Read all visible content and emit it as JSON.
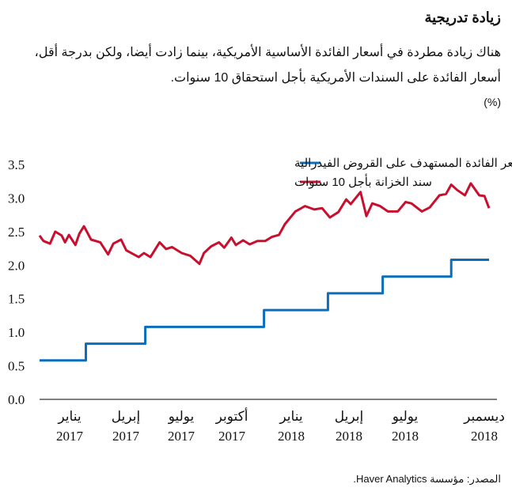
{
  "title": "زيادة تدريجية",
  "subtitle_lines": [
    "هناك زيادة مطردة في أسعار الفائدة الأساسية الأمريكية، بينما زادت أيضا، ولكن بدرجة أقل،",
    "أسعار الفائدة على السندات الأمريكية بأجل استحقاق 10 سنوات."
  ],
  "unit": "(%)",
  "source": "المصدر: مؤسسة Haver Analytics.",
  "chart_data": {
    "type": "line",
    "title": "زيادة تدريجية",
    "ylabel": "(%)",
    "ylim": [
      0,
      3.5
    ],
    "yticks": [
      "0.0",
      "0.5",
      "1.0",
      "1.5",
      "2.0",
      "2.5",
      "3.0",
      "3.5"
    ],
    "xlim": [
      "2017-01-03",
      "2018-11-23"
    ],
    "xticks": [
      {
        "month": "يناير",
        "year": "2017"
      },
      {
        "month": "إبريل",
        "year": "2017"
      },
      {
        "month": "يوليو",
        "year": "2017"
      },
      {
        "month": "أكتوبر",
        "year": "2017"
      },
      {
        "month": "يناير",
        "year": "2018"
      },
      {
        "month": "إبريل",
        "year": "2018"
      },
      {
        "month": "يوليو",
        "year": "2018"
      },
      {
        "month": "ديسمبر",
        "year": "2018"
      }
    ],
    "grid": false,
    "legend_placement": "top",
    "series": [
      {
        "name": "سعر الفائدة المستهدف على القروض الفيدرالية",
        "color": "#0a6ebd",
        "step": true,
        "points": [
          [
            "2017-01-03",
            0.58
          ],
          [
            "2017-03-15",
            0.83
          ],
          [
            "2017-06-14",
            1.08
          ],
          [
            "2017-12-13",
            1.33
          ],
          [
            "2018-03-21",
            1.58
          ],
          [
            "2018-06-13",
            1.83
          ],
          [
            "2018-09-26",
            2.08
          ],
          [
            "2018-11-23",
            2.08
          ]
        ]
      },
      {
        "name": "سند الخزانة بأجل 10 سنوات",
        "color": "#c8102e",
        "step": false,
        "points": [
          [
            "2017-01-03",
            2.44
          ],
          [
            "2017-01-09",
            2.36
          ],
          [
            "2017-01-19",
            2.32
          ],
          [
            "2017-01-27",
            2.5
          ],
          [
            "2017-02-06",
            2.44
          ],
          [
            "2017-02-11",
            2.34
          ],
          [
            "2017-02-17",
            2.45
          ],
          [
            "2017-02-27",
            2.3
          ],
          [
            "2017-03-05",
            2.47
          ],
          [
            "2017-03-12",
            2.58
          ],
          [
            "2017-03-23",
            2.38
          ],
          [
            "2017-04-06",
            2.34
          ],
          [
            "2017-04-18",
            2.16
          ],
          [
            "2017-04-26",
            2.32
          ],
          [
            "2017-05-08",
            2.38
          ],
          [
            "2017-05-16",
            2.22
          ],
          [
            "2017-06-04",
            2.12
          ],
          [
            "2017-06-12",
            2.18
          ],
          [
            "2017-06-22",
            2.12
          ],
          [
            "2017-07-06",
            2.34
          ],
          [
            "2017-07-16",
            2.24
          ],
          [
            "2017-07-25",
            2.27
          ],
          [
            "2017-08-09",
            2.18
          ],
          [
            "2017-08-22",
            2.14
          ],
          [
            "2017-09-05",
            2.02
          ],
          [
            "2017-09-12",
            2.18
          ],
          [
            "2017-09-23",
            2.28
          ],
          [
            "2017-10-05",
            2.34
          ],
          [
            "2017-10-13",
            2.26
          ],
          [
            "2017-10-24",
            2.41
          ],
          [
            "2017-10-31",
            2.3
          ],
          [
            "2017-11-11",
            2.37
          ],
          [
            "2017-11-21",
            2.31
          ],
          [
            "2017-12-03",
            2.36
          ],
          [
            "2017-12-15",
            2.36
          ],
          [
            "2017-12-25",
            2.42
          ],
          [
            "2018-01-05",
            2.45
          ],
          [
            "2018-01-14",
            2.61
          ],
          [
            "2018-01-30",
            2.8
          ],
          [
            "2018-02-14",
            2.88
          ],
          [
            "2018-02-28",
            2.83
          ],
          [
            "2018-03-12",
            2.85
          ],
          [
            "2018-03-24",
            2.71
          ],
          [
            "2018-04-06",
            2.79
          ],
          [
            "2018-04-18",
            2.98
          ],
          [
            "2018-04-25",
            2.91
          ],
          [
            "2018-05-10",
            3.09
          ],
          [
            "2018-05-19",
            2.73
          ],
          [
            "2018-05-28",
            2.92
          ],
          [
            "2018-06-09",
            2.88
          ],
          [
            "2018-06-21",
            2.8
          ],
          [
            "2018-07-06",
            2.8
          ],
          [
            "2018-07-18",
            2.94
          ],
          [
            "2018-07-27",
            2.92
          ],
          [
            "2018-08-12",
            2.8
          ],
          [
            "2018-08-24",
            2.86
          ],
          [
            "2018-09-08",
            3.04
          ],
          [
            "2018-09-18",
            3.06
          ],
          [
            "2018-09-26",
            3.2
          ],
          [
            "2018-10-05",
            3.12
          ],
          [
            "2018-10-17",
            3.04
          ],
          [
            "2018-10-26",
            3.22
          ],
          [
            "2018-11-08",
            3.04
          ],
          [
            "2018-11-16",
            3.03
          ],
          [
            "2018-11-23",
            2.85
          ]
        ]
      }
    ]
  }
}
